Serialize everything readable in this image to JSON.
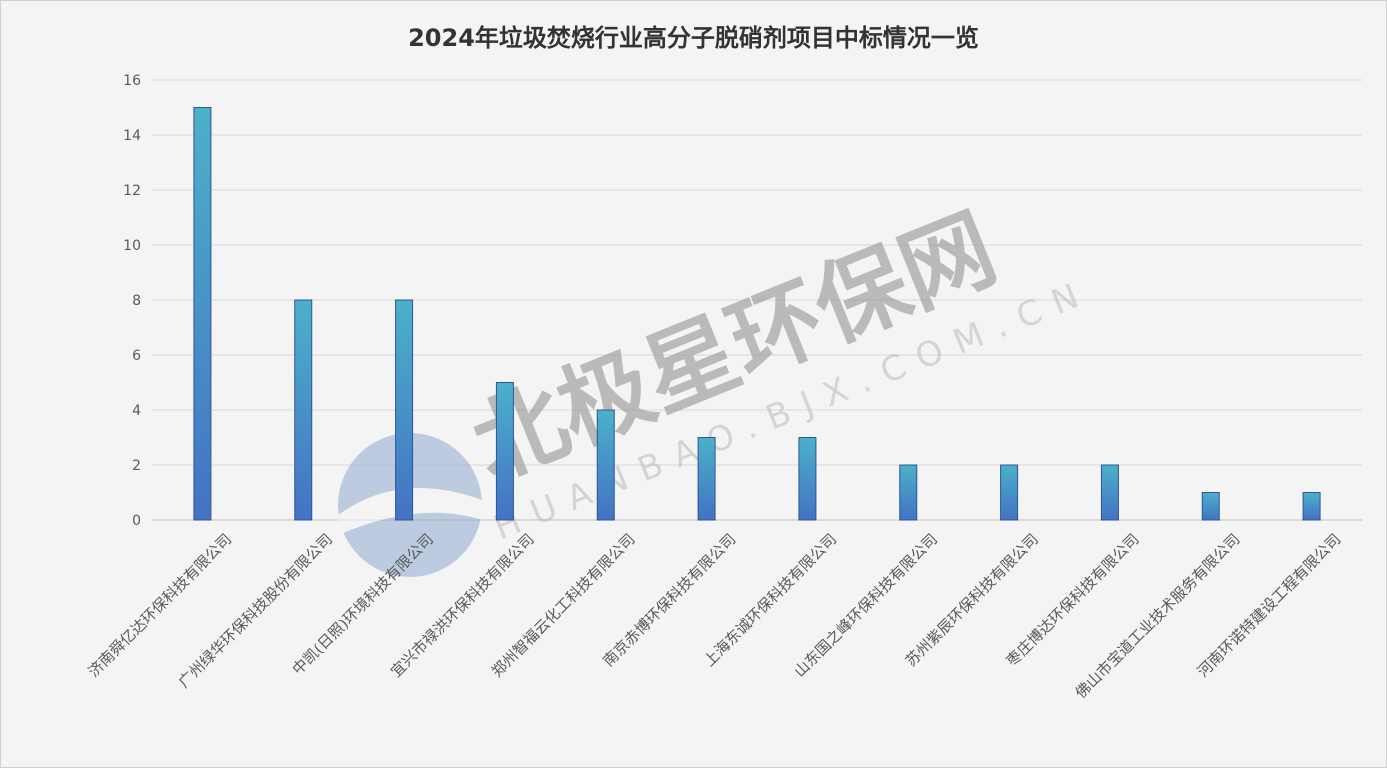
{
  "chart_data": {
    "type": "bar",
    "title": "2024年垃圾焚烧行业高分子脱硝剂项目中标情况一览",
    "categories": [
      "济南舜亿达环保科技有限公司",
      "广州绿华环保科技股份有限公司",
      "中凯(日照)环境科技有限公司",
      "宜兴市禄洪环保科技有限公司",
      "郑州智福云化工科技有限公司",
      "南京赤博环保科技有限公司",
      "上海东诚环保科技有限公司",
      "山东国之峰环保科技有限公司",
      "苏州紫辰环保科技有限公司",
      "枣庄博达环保科技有限公司",
      "佛山市宝道工业技术服务有限公司",
      "河南环诺特建设工程有限公司"
    ],
    "values": [
      15,
      8,
      8,
      5,
      4,
      3,
      3,
      2,
      2,
      2,
      1,
      1
    ],
    "xlabel": "",
    "ylabel": "",
    "ylim": [
      0,
      16
    ],
    "yticks": [
      0,
      2,
      4,
      6,
      8,
      10,
      12,
      14,
      16
    ],
    "grid": true,
    "legend": "none",
    "colors": {
      "bar_top": "#4bb1c9",
      "bar_bottom": "#4472c4",
      "bar_edge": "#2f5597",
      "grid": "#d9d9d9"
    }
  },
  "watermark": {
    "brand": "北极星环保网",
    "url": "HUANBAO.BJX.COM.CN",
    "color": "#8fa9d0"
  }
}
